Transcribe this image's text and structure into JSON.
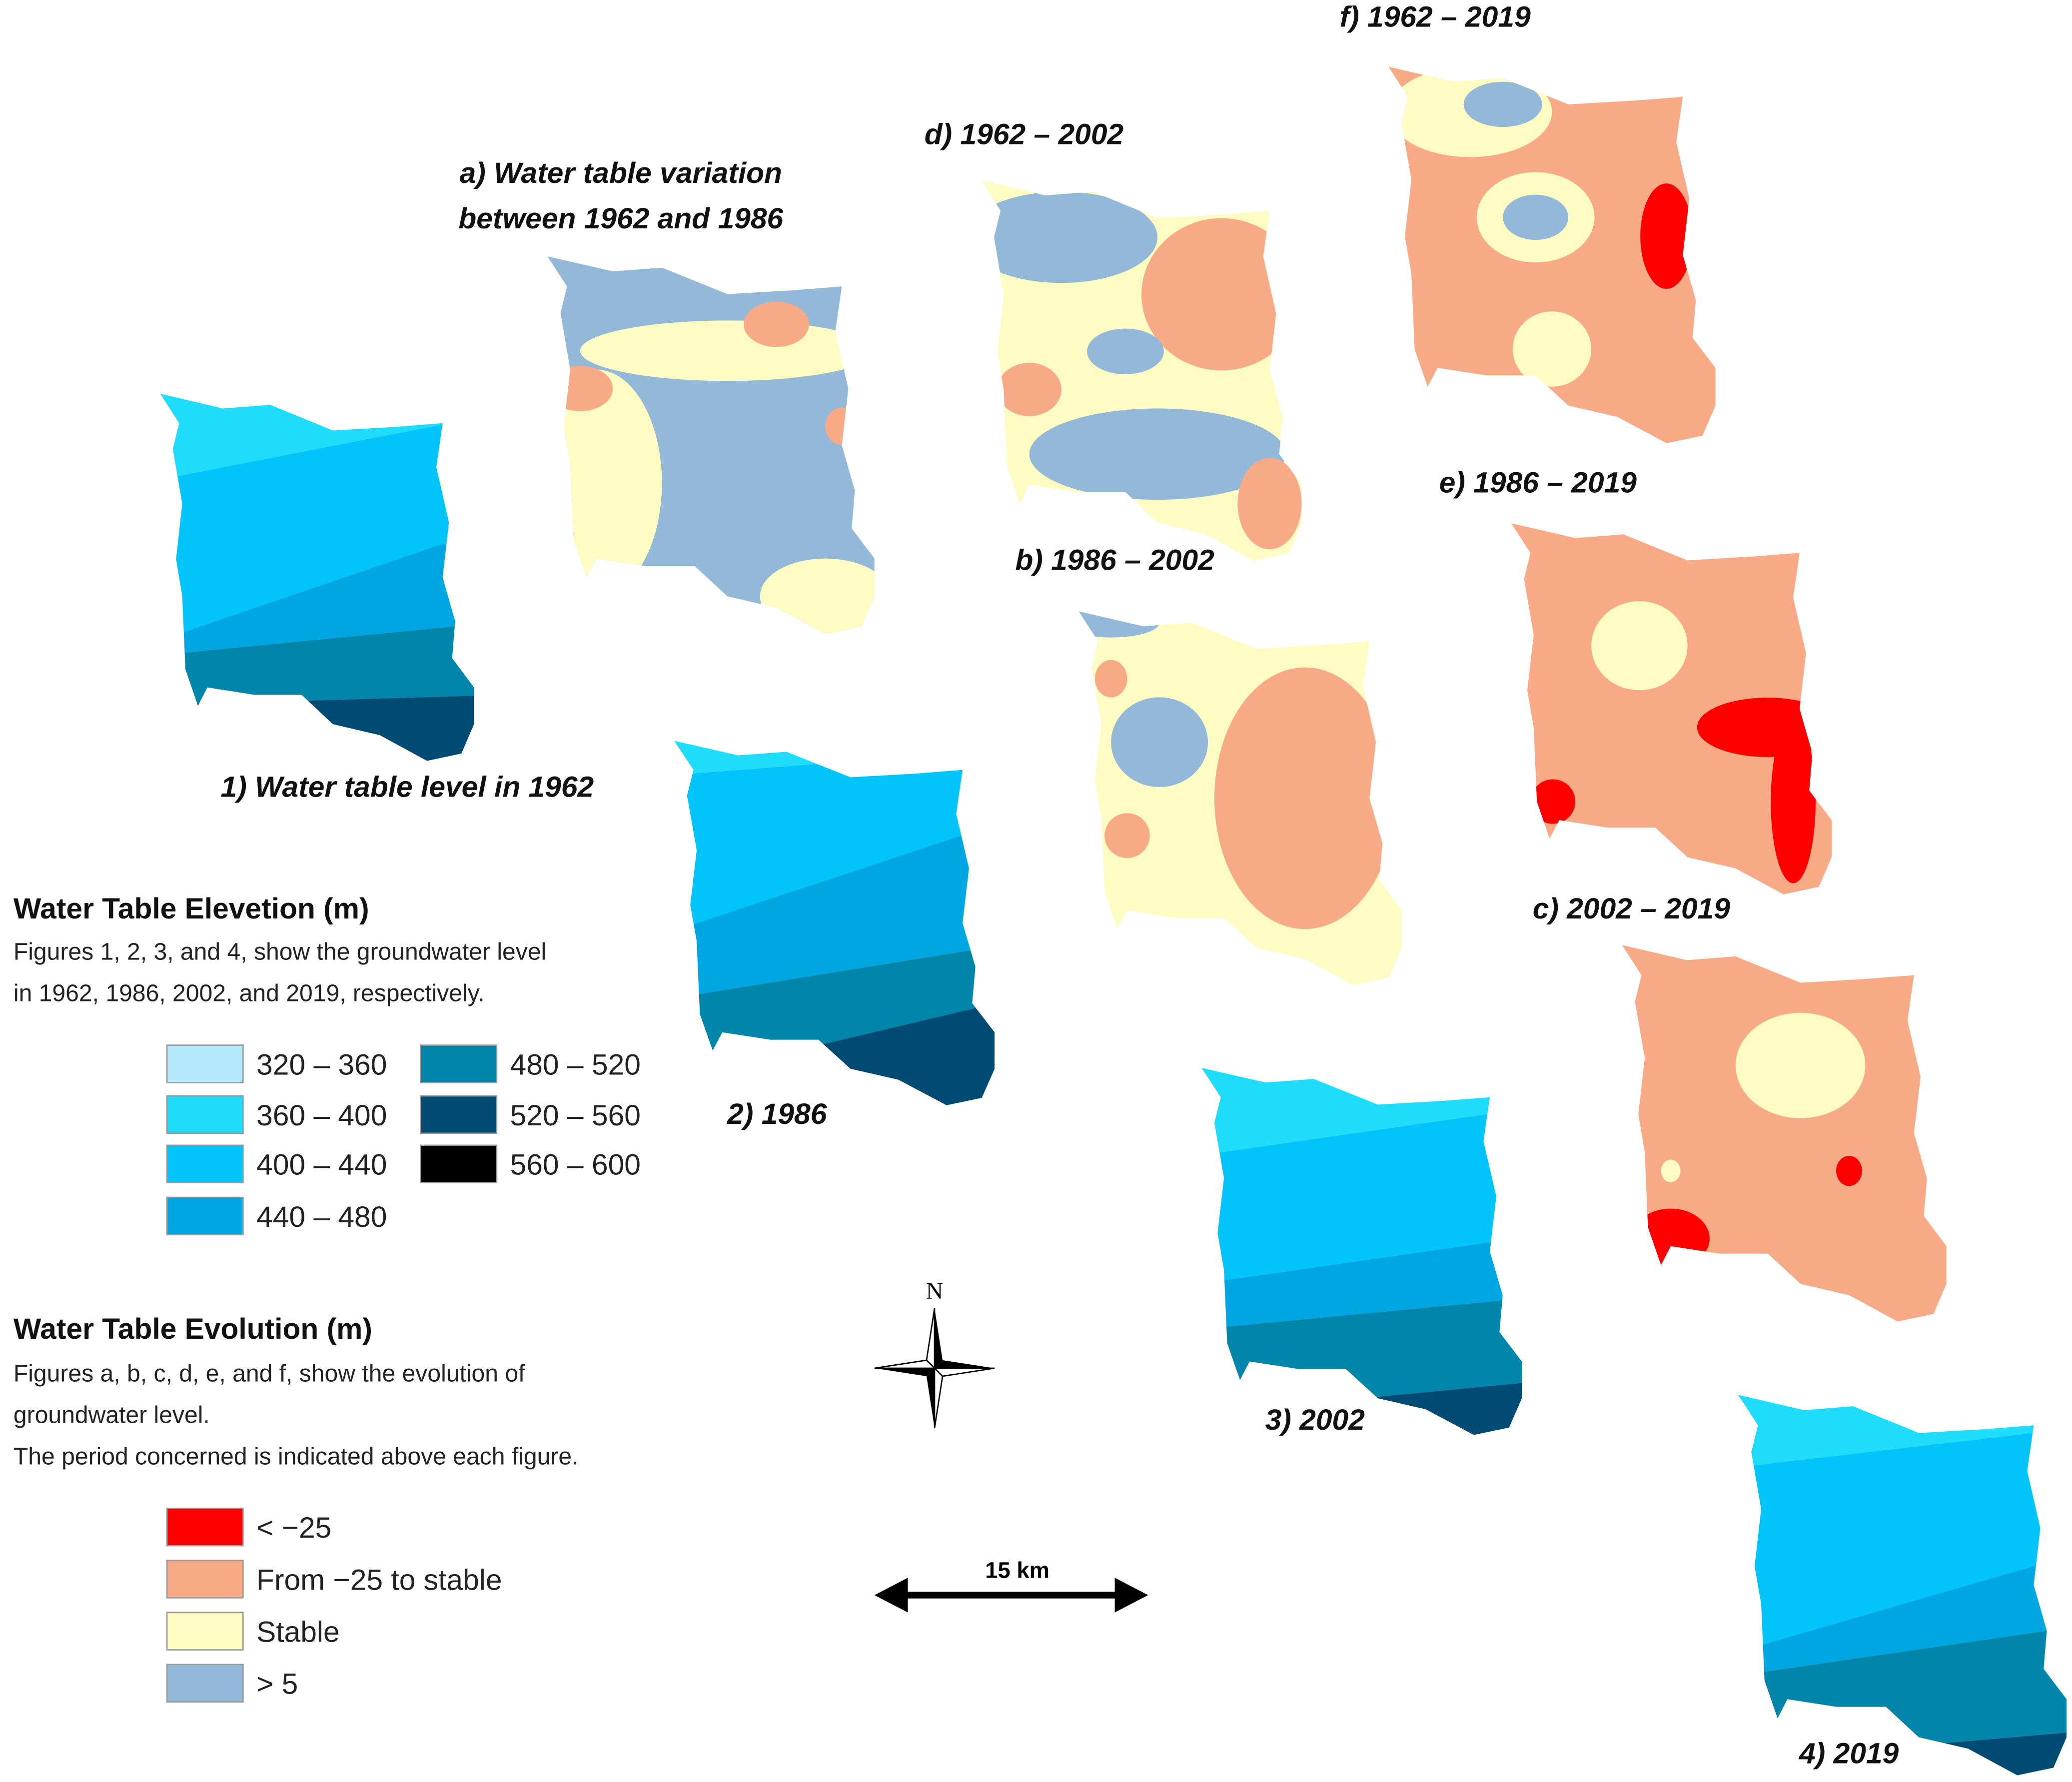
{
  "elevation_maps": [
    {
      "label": "1) Water table level in 1962"
    },
    {
      "label": "2) 1986"
    },
    {
      "label": "3) 2002"
    },
    {
      "label": "4) 2019"
    }
  ],
  "evolution_maps": [
    {
      "label_lines": [
        "a) Water table variation",
        "between 1962  and 1986"
      ]
    },
    {
      "label_lines": [
        "b) 1986 – 2002"
      ]
    },
    {
      "label_lines": [
        "c) 2002 – 2019"
      ]
    },
    {
      "label_lines": [
        "d) 1962 – 2002"
      ]
    },
    {
      "label_lines": [
        "e) 1986 – 2019"
      ]
    },
    {
      "label_lines": [
        "f) 1962 – 2019"
      ]
    }
  ],
  "elevation_legend": {
    "title": "Water Table Elevetion (m)",
    "description": [
      "Figures 1, 2, 3, and 4, show the groundwater level",
      "in 1962, 1986, 2002, and 2019, respectively."
    ],
    "items": [
      {
        "label": "320 – 360",
        "color": "#b3e9fa"
      },
      {
        "label": "360 – 400",
        "color": "#1fdcfb"
      },
      {
        "label": "400 – 440",
        "color": "#00c4fa"
      },
      {
        "label": "440 – 480",
        "color": "#00a6e2"
      },
      {
        "label": "480 – 520",
        "color": "#0086aa"
      },
      {
        "label": "520 – 560",
        "color": "#004b74"
      },
      {
        "label": "560 – 600",
        "color": "#000000"
      }
    ]
  },
  "evolution_legend": {
    "title": "Water Table Evolution (m)",
    "description": [
      "Figures a, b, c, d, e, and f, show the evolution of",
      "groundwater level.",
      "The period concerned is indicated above each figure."
    ],
    "items": [
      {
        "label": "< −25",
        "color": "#ff0000"
      },
      {
        "label": "From −25 to stable",
        "color": "#f8a985"
      },
      {
        "label": "Stable",
        "color": "#fdfcc2"
      },
      {
        "label": "> 5",
        "color": "#93b8d8"
      }
    ]
  },
  "compass": {
    "label": "N"
  },
  "scale_bar": {
    "label": "15 km"
  }
}
